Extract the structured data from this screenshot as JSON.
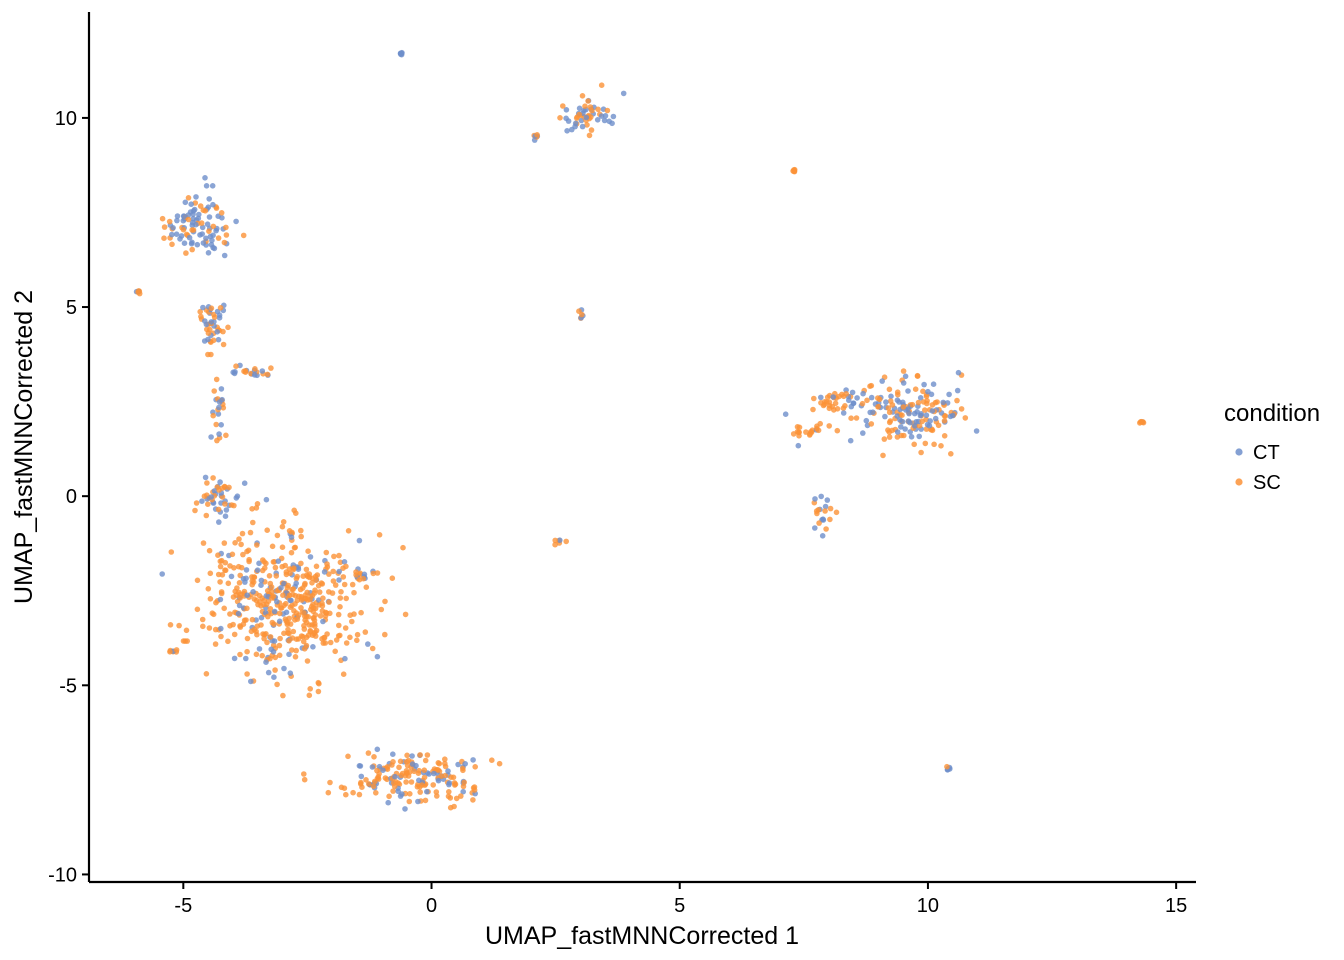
{
  "chart_data": {
    "type": "scatter",
    "title": "",
    "xlabel": "UMAP_fastMNNCorrected 1",
    "ylabel": "UMAP_fastMNNCorrected 2",
    "xlim": [
      -6.9,
      15.4
    ],
    "ylim": [
      -10.2,
      12.8
    ],
    "x_ticks": [
      -5,
      0,
      5,
      10,
      15
    ],
    "x_tick_labels": [
      "-5",
      "0",
      "5",
      "10",
      "15"
    ],
    "y_ticks": [
      -10,
      -5,
      0,
      5,
      10
    ],
    "y_tick_labels": [
      "-10",
      "-5",
      "0",
      "5",
      "10"
    ],
    "grid": false,
    "legend": {
      "title": "condition",
      "position": "right",
      "entries": [
        "CT",
        "SC"
      ]
    },
    "series": [
      {
        "name": "CT",
        "color": "#6E8FCB"
      },
      {
        "name": "SC",
        "color": "#FB9237"
      }
    ],
    "clusters": [
      {
        "name": "upper-left",
        "center": [
          -4.7,
          7.2
        ],
        "spread": [
          0.55,
          0.7
        ],
        "ct_share": 0.72
      },
      {
        "name": "upper-left-stem",
        "center": [
          -4.4,
          4.6
        ],
        "spread": [
          0.25,
          0.7
        ],
        "ct_share": 0.5
      },
      {
        "name": "upper-left-branch",
        "center": [
          -3.6,
          3.3
        ],
        "spread": [
          0.4,
          0.2
        ],
        "ct_share": 0.55
      },
      {
        "name": "left-stem-lower",
        "center": [
          -4.3,
          2.4
        ],
        "spread": [
          0.15,
          0.6
        ],
        "ct_share": 0.4
      },
      {
        "name": "central-band",
        "center": [
          -3.0,
          -2.8
        ],
        "spread": [
          1.3,
          1.5
        ],
        "ct_share": 0.2
      },
      {
        "name": "central-top",
        "center": [
          -4.3,
          0.0
        ],
        "spread": [
          0.35,
          0.5
        ],
        "ct_share": 0.45
      },
      {
        "name": "central-arm",
        "center": [
          -1.4,
          -2.1
        ],
        "spread": [
          0.35,
          0.15
        ],
        "ct_share": 0.3
      },
      {
        "name": "lower-arc",
        "center": [
          -0.4,
          -7.4
        ],
        "spread": [
          1.3,
          0.55
        ],
        "ct_share": 0.3
      },
      {
        "name": "top-middle",
        "center": [
          3.2,
          10.0
        ],
        "spread": [
          0.45,
          0.45
        ],
        "ct_share": 0.4
      },
      {
        "name": "right-main",
        "center": [
          9.7,
          2.2
        ],
        "spread": [
          0.9,
          0.7
        ],
        "ct_share": 0.5
      },
      {
        "name": "right-arm",
        "center": [
          8.2,
          2.5
        ],
        "spread": [
          0.6,
          0.3
        ],
        "ct_share": 0.35
      },
      {
        "name": "right-stem",
        "center": [
          7.9,
          -0.4
        ],
        "spread": [
          0.15,
          0.5
        ],
        "ct_share": 0.45
      },
      {
        "name": "right-left-spur",
        "center": [
          7.6,
          1.7
        ],
        "spread": [
          0.4,
          0.2
        ],
        "ct_share": 0.2
      },
      {
        "name": "small-center",
        "center": [
          2.6,
          -1.2
        ],
        "spread": [
          0.12,
          0.12
        ],
        "ct_share": 0.3
      },
      {
        "name": "small-upper",
        "center": [
          3.0,
          4.8
        ],
        "spread": [
          0.06,
          0.1
        ],
        "ct_share": 0.5
      },
      {
        "name": "small-left-mid",
        "center": [
          -5.9,
          5.4
        ],
        "spread": [
          0.04,
          0.05
        ],
        "ct_share": 0.5
      },
      {
        "name": "small-left-low",
        "center": [
          -5.2,
          -4.1
        ],
        "spread": [
          0.07,
          0.04
        ],
        "ct_share": 0.3
      },
      {
        "name": "small-right-low",
        "center": [
          10.4,
          -7.2
        ],
        "spread": [
          0.05,
          0.05
        ],
        "ct_share": 0.5
      },
      {
        "name": "small-far-right",
        "center": [
          14.3,
          1.95
        ],
        "spread": [
          0.05,
          0.03
        ],
        "ct_share": 0.2
      },
      {
        "name": "small-top",
        "center": [
          -0.6,
          11.7
        ],
        "spread": [
          0.03,
          0.03
        ],
        "ct_share": 1.0
      },
      {
        "name": "small-top-right",
        "center": [
          7.3,
          8.6
        ],
        "spread": [
          0.03,
          0.03
        ],
        "ct_share": 0.0
      },
      {
        "name": "small-top-left",
        "center": [
          2.1,
          9.5
        ],
        "spread": [
          0.06,
          0.05
        ],
        "ct_share": 0.3
      }
    ]
  }
}
